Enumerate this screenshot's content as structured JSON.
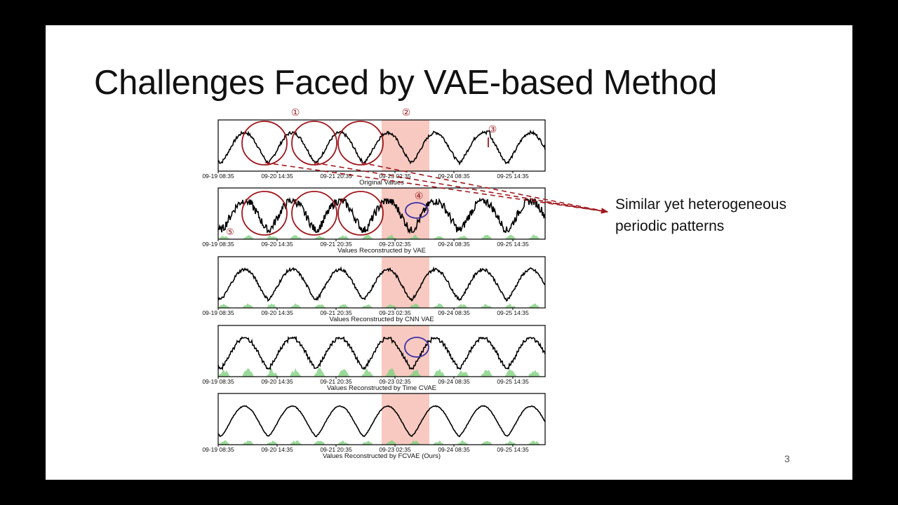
{
  "slide": {
    "title": "Challenges Faced by VAE-based Method",
    "annotation_lines": [
      "Similar yet heterogeneous",
      "periodic patterns"
    ],
    "page_number": "3"
  },
  "colors": {
    "line": "#000000",
    "highlight": "#f7c9c0",
    "score_fill": "#7fd17f",
    "red_marker": "#a0181e",
    "blue_marker": "#3b2fa8"
  },
  "markers": {
    "m1": "①",
    "m2": "②",
    "m3": "③",
    "m4": "④",
    "m5": "⑤"
  },
  "chart_data": [
    {
      "type": "line",
      "title": "Original Values",
      "x_ticks": [
        "09-19 08:35",
        "09-20 14:35",
        "09-21 20:35",
        "09-23 02:35",
        "09-24 08:35",
        "09-25 14:35"
      ],
      "highlight_range": [
        "09-23 02:35",
        "09-24 08:35"
      ],
      "has_score_area": false,
      "signal": "noisy-periodic"
    },
    {
      "type": "line",
      "title": "Values Reconstructed by VAE",
      "x_ticks": [
        "09-19 08:35",
        "09-20 14:35",
        "09-21 20:35",
        "09-23 02:35",
        "09-24 08:35",
        "09-25 14:35"
      ],
      "highlight_range": [
        "09-23 02:35",
        "09-24 08:35"
      ],
      "has_score_area": true,
      "signal": "very-noisy-periodic"
    },
    {
      "type": "line",
      "title": "Values Reconstructed by CNN VAE",
      "x_ticks": [
        "09-19 08:35",
        "09-20 14:35",
        "09-21 20:35",
        "09-23 02:35",
        "09-24 08:35",
        "09-25 14:35"
      ],
      "highlight_range": [
        "09-23 02:35",
        "09-24 08:35"
      ],
      "has_score_area": true,
      "signal": "noisy-periodic"
    },
    {
      "type": "line",
      "title": "Values Reconstructed by Time CVAE",
      "x_ticks": [
        "09-19 08:35",
        "09-20 14:35",
        "09-21 20:35",
        "09-23 02:35",
        "09-24 08:35",
        "09-25 14:35"
      ],
      "highlight_range": [
        "09-23 02:35",
        "09-24 08:35"
      ],
      "has_score_area": true,
      "signal": "stepped-periodic"
    },
    {
      "type": "line",
      "title": "Values Reconstructed by FCVAE (Ours)",
      "x_ticks": [
        "09-19 08:35",
        "09-20 14:35",
        "09-21 20:35",
        "09-23 02:35",
        "09-24 08:35",
        "09-25 14:35"
      ],
      "highlight_range": [
        "09-23 02:35",
        "09-24 08:35"
      ],
      "has_score_area": true,
      "signal": "smooth-periodic"
    }
  ]
}
